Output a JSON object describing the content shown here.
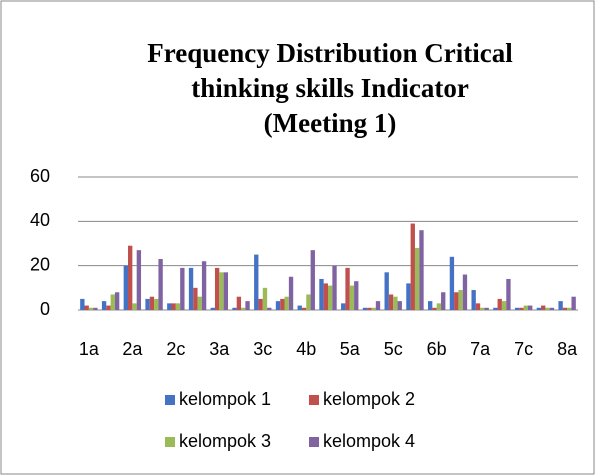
{
  "chart_data": {
    "type": "bar",
    "title": [
      "Frequency Distribution Critical",
      "thinking skills Indicator",
      "(Meeting 1)"
    ],
    "categories": [
      "1a",
      null,
      "2a",
      null,
      "2c",
      null,
      "3a",
      null,
      "3c",
      null,
      "4b",
      null,
      "5a",
      null,
      "5c",
      null,
      "6b",
      null,
      "7a",
      null,
      "7c",
      null,
      "8a"
    ],
    "series": [
      {
        "name": "kelompok 1",
        "color": "#4472c4",
        "values": [
          5,
          4,
          20,
          5,
          3,
          19,
          1,
          1,
          25,
          4,
          2,
          14,
          3,
          1,
          17,
          12,
          4,
          24,
          9,
          1,
          1,
          1,
          4
        ]
      },
      {
        "name": "kelompok 2",
        "color": "#c0504d",
        "values": [
          2,
          2,
          29,
          6,
          3,
          10,
          19,
          6,
          5,
          5,
          1,
          12,
          19,
          1,
          7,
          39,
          1,
          8,
          3,
          5,
          1,
          2,
          1
        ]
      },
      {
        "name": "kelompok 3",
        "color": "#9bbb59",
        "values": [
          1,
          7,
          3,
          5,
          3,
          6,
          17,
          1,
          10,
          6,
          7,
          11,
          11,
          1,
          6,
          28,
          3,
          9,
          1,
          4,
          2,
          1,
          1
        ]
      },
      {
        "name": "kelompok 4",
        "color": "#8064a2",
        "values": [
          1,
          8,
          27,
          23,
          19,
          22,
          17,
          4,
          1,
          15,
          27,
          20,
          13,
          4,
          4,
          36,
          8,
          16,
          1,
          14,
          2,
          1,
          6
        ]
      }
    ],
    "ylim": [
      0,
      60
    ],
    "yticks": [
      0,
      20,
      40,
      60
    ],
    "grid": true,
    "legend": "bottom"
  }
}
